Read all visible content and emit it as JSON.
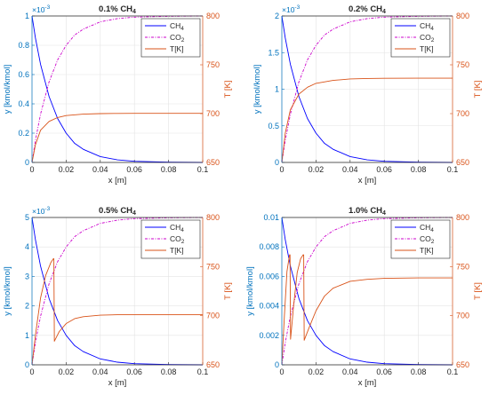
{
  "colors": {
    "left_axis": "#0072BD",
    "right_axis": "#D95319",
    "ch4": "#0000FF",
    "co2": "#CC00CC",
    "temp": "#D95319",
    "grid": "#E3E3E3",
    "text": "#262626"
  },
  "chart_data": [
    {
      "type": "line",
      "title_main": "0.1% CH",
      "title_sub": "4",
      "xlabel": "x [m]",
      "ylabel": "y [kmol/kmol]",
      "y2label": "T [K]",
      "exponent_base": "×10",
      "exponent_power": "-3",
      "xlim": [
        0,
        0.1
      ],
      "ylim": [
        0,
        1
      ],
      "y2lim": [
        650,
        800
      ],
      "xticks": [
        "0",
        "0.02",
        "0.04",
        "0.06",
        "0.08",
        "0.1"
      ],
      "yticks": [
        "0",
        "0.2",
        "0.4",
        "0.6",
        "0.8",
        "1"
      ],
      "y2ticks": [
        "650",
        "700",
        "750",
        "800"
      ],
      "grid": true,
      "legend_position": "top-right",
      "series": [
        {
          "name": "CH",
          "name_sub": "4",
          "axis": "left",
          "style": "solid",
          "x": [
            0,
            0.002,
            0.005,
            0.01,
            0.015,
            0.02,
            0.025,
            0.03,
            0.04,
            0.05,
            0.06,
            0.08,
            0.1
          ],
          "y": [
            1.0,
            0.85,
            0.67,
            0.45,
            0.3,
            0.2,
            0.13,
            0.09,
            0.04,
            0.018,
            0.008,
            0.002,
            0.0
          ]
        },
        {
          "name": "CO",
          "name_sub": "2",
          "axis": "left",
          "style": "dashdot",
          "x": [
            0,
            0.002,
            0.005,
            0.01,
            0.015,
            0.02,
            0.025,
            0.03,
            0.04,
            0.05,
            0.06,
            0.08,
            0.1
          ],
          "y": [
            0.0,
            0.15,
            0.33,
            0.55,
            0.7,
            0.8,
            0.87,
            0.91,
            0.96,
            0.982,
            0.992,
            0.998,
            1.0
          ]
        },
        {
          "name": "T[K]",
          "name_sub": "",
          "axis": "right",
          "style": "solid",
          "x": [
            0,
            0.002,
            0.005,
            0.01,
            0.015,
            0.02,
            0.03,
            0.04,
            0.05,
            0.06,
            0.08,
            0.1
          ],
          "y": [
            650,
            668,
            683,
            692,
            696,
            698,
            699.5,
            700,
            700.2,
            700.3,
            700.3,
            700.3
          ]
        }
      ]
    },
    {
      "type": "line",
      "title_main": "0.2% CH",
      "title_sub": "4",
      "xlabel": "x [m]",
      "ylabel": "y [kmol/kmol]",
      "y2label": "T [K]",
      "exponent_base": "×10",
      "exponent_power": "-3",
      "xlim": [
        0,
        0.1
      ],
      "ylim": [
        0,
        2
      ],
      "y2lim": [
        650,
        800
      ],
      "xticks": [
        "0",
        "0.02",
        "0.04",
        "0.06",
        "0.08",
        "0.1"
      ],
      "yticks": [
        "0",
        "0.5",
        "1",
        "1.5",
        "2"
      ],
      "y2ticks": [
        "650",
        "700",
        "750",
        "800"
      ],
      "grid": true,
      "legend_position": "top-right",
      "series": [
        {
          "name": "CH",
          "name_sub": "4",
          "axis": "left",
          "style": "solid",
          "x": [
            0,
            0.002,
            0.005,
            0.01,
            0.015,
            0.02,
            0.025,
            0.03,
            0.04,
            0.05,
            0.06,
            0.08,
            0.1
          ],
          "y": [
            2.0,
            1.7,
            1.34,
            0.9,
            0.6,
            0.4,
            0.26,
            0.18,
            0.08,
            0.036,
            0.016,
            0.004,
            0.0
          ]
        },
        {
          "name": "CO",
          "name_sub": "2",
          "axis": "left",
          "style": "dashdot",
          "x": [
            0,
            0.002,
            0.005,
            0.01,
            0.015,
            0.02,
            0.025,
            0.03,
            0.04,
            0.05,
            0.06,
            0.08,
            0.1
          ],
          "y": [
            0.0,
            0.3,
            0.66,
            1.1,
            1.4,
            1.6,
            1.74,
            1.82,
            1.92,
            1.964,
            1.984,
            1.996,
            2.0
          ]
        },
        {
          "name": "T[K]",
          "name_sub": "",
          "axis": "right",
          "style": "solid",
          "x": [
            0,
            0.002,
            0.005,
            0.01,
            0.015,
            0.02,
            0.03,
            0.04,
            0.05,
            0.06,
            0.08,
            0.1
          ],
          "y": [
            650,
            680,
            704,
            720,
            727,
            731,
            734,
            735.5,
            736,
            736.2,
            736.3,
            736.3
          ]
        }
      ]
    },
    {
      "type": "line",
      "title_main": "0.5% CH",
      "title_sub": "4",
      "xlabel": "x [m]",
      "ylabel": "y [kmol/kmol]",
      "y2label": "T [K]",
      "exponent_base": "×10",
      "exponent_power": "-3",
      "xlim": [
        0,
        0.1
      ],
      "ylim": [
        0,
        5
      ],
      "y2lim": [
        650,
        800
      ],
      "xticks": [
        "0",
        "0.02",
        "0.04",
        "0.06",
        "0.08",
        "0.1"
      ],
      "yticks": [
        "0",
        "1",
        "2",
        "3",
        "4",
        "5"
      ],
      "y2ticks": [
        "650",
        "700",
        "750",
        "800"
      ],
      "grid": true,
      "legend_position": "top-right",
      "series": [
        {
          "name": "CH",
          "name_sub": "4",
          "axis": "left",
          "style": "solid",
          "x": [
            0,
            0.002,
            0.005,
            0.01,
            0.015,
            0.02,
            0.025,
            0.03,
            0.04,
            0.05,
            0.06,
            0.08,
            0.1
          ],
          "y": [
            5.0,
            4.25,
            3.35,
            2.25,
            1.5,
            1.0,
            0.65,
            0.45,
            0.2,
            0.09,
            0.04,
            0.01,
            0.0
          ]
        },
        {
          "name": "CO",
          "name_sub": "2",
          "axis": "left",
          "style": "dashdot",
          "x": [
            0,
            0.002,
            0.005,
            0.01,
            0.015,
            0.02,
            0.025,
            0.03,
            0.04,
            0.05,
            0.06,
            0.08,
            0.1
          ],
          "y": [
            0.0,
            0.75,
            1.65,
            2.75,
            3.5,
            4.0,
            4.35,
            4.55,
            4.8,
            4.91,
            4.96,
            4.99,
            5.0
          ]
        },
        {
          "name": "T[K]",
          "name_sub": "",
          "axis": "right",
          "style": "solid",
          "x": [
            0,
            0.002,
            0.005,
            0.008,
            0.011,
            0.0125,
            0.0128,
            0.0131,
            0.016,
            0.02,
            0.025,
            0.03,
            0.04,
            0.05,
            0.06,
            0.08,
            0.1
          ],
          "y": [
            650,
            680,
            718,
            741,
            754,
            758,
            758,
            674,
            684,
            692,
            697,
            699,
            700.5,
            701,
            701,
            701,
            701
          ]
        }
      ]
    },
    {
      "type": "line",
      "title_main": "1.0% CH",
      "title_sub": "4",
      "xlabel": "x [m]",
      "ylabel": "y [kmol/kmol]",
      "y2label": "T [K]",
      "exponent_base": "",
      "exponent_power": "",
      "xlim": [
        0,
        0.1
      ],
      "ylim": [
        0,
        0.01
      ],
      "y2lim": [
        650,
        800
      ],
      "xticks": [
        "0",
        "0.02",
        "0.04",
        "0.06",
        "0.08",
        "0.1"
      ],
      "yticks": [
        "0",
        "0.002",
        "0.004",
        "0.006",
        "0.008",
        "0.01"
      ],
      "y2ticks": [
        "650",
        "700",
        "750",
        "800"
      ],
      "grid": true,
      "legend_position": "top-right",
      "series": [
        {
          "name": "CH",
          "name_sub": "4",
          "axis": "left",
          "style": "solid",
          "x": [
            0,
            0.002,
            0.005,
            0.01,
            0.015,
            0.02,
            0.025,
            0.03,
            0.04,
            0.05,
            0.06,
            0.08,
            0.1
          ],
          "y": [
            0.01,
            0.0085,
            0.0067,
            0.0045,
            0.003,
            0.002,
            0.0013,
            0.0009,
            0.0004,
            0.00018,
            8e-05,
            2e-05,
            0.0
          ]
        },
        {
          "name": "CO",
          "name_sub": "2",
          "axis": "left",
          "style": "dashdot",
          "x": [
            0,
            0.002,
            0.005,
            0.01,
            0.015,
            0.02,
            0.025,
            0.03,
            0.04,
            0.05,
            0.06,
            0.08,
            0.1
          ],
          "y": [
            0.0,
            0.0015,
            0.0033,
            0.0055,
            0.007,
            0.008,
            0.0087,
            0.0091,
            0.0096,
            0.00982,
            0.00992,
            0.00998,
            0.01
          ]
        },
        {
          "name": "T[K]",
          "name_sub": "",
          "axis": "right",
          "style": "solid",
          "x": [
            0,
            0.0015,
            0.003,
            0.0045,
            0.0048,
            0.0051,
            0.007,
            0.009,
            0.011,
            0.0125,
            0.0128,
            0.0131,
            0.016,
            0.02,
            0.025,
            0.03,
            0.04,
            0.05,
            0.06,
            0.08,
            0.1
          ],
          "y": [
            650,
            700,
            745,
            762,
            762,
            676,
            712,
            744,
            758,
            762,
            762,
            675,
            688,
            705,
            720,
            728,
            735,
            737,
            738,
            738.5,
            738.5
          ]
        }
      ]
    }
  ]
}
